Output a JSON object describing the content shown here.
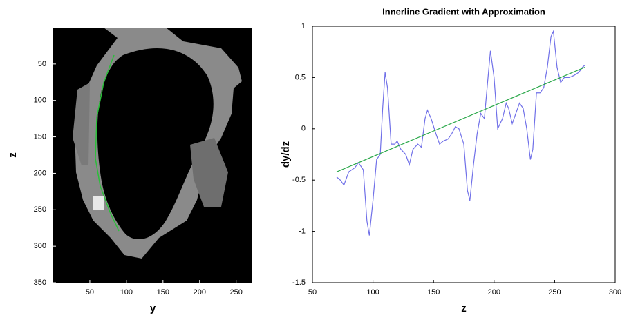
{
  "chart_data": [
    {
      "type": "image",
      "xlabel": "y",
      "ylabel": "z",
      "xlim": [
        0,
        272
      ],
      "ylim": [
        0,
        350
      ],
      "y_inverted": true,
      "xticks": [
        50,
        100,
        150,
        200,
        250
      ],
      "yticks": [
        50,
        100,
        150,
        200,
        250,
        300,
        350
      ]
    },
    {
      "type": "line",
      "title": "Innerline Gradient with Approximation",
      "xlabel": "z",
      "ylabel": "dy/dz",
      "xlim": [
        50,
        300
      ],
      "ylim": [
        -1.5,
        1
      ],
      "xticks": [
        50,
        100,
        150,
        200,
        250,
        300
      ],
      "yticks": [
        -1.5,
        -1,
        -0.5,
        0,
        0.5,
        1
      ],
      "series": [
        {
          "color": "#7070e8",
          "x": [
            70,
            73,
            76,
            80,
            85,
            88,
            92,
            95,
            97,
            100,
            103,
            106,
            108,
            110,
            112,
            115,
            118,
            120,
            123,
            127,
            130,
            133,
            137,
            140,
            143,
            145,
            148,
            152,
            155,
            158,
            162,
            165,
            168,
            171,
            175,
            178,
            180,
            183,
            186,
            189,
            192,
            195,
            197,
            200,
            203,
            207,
            210,
            212,
            215,
            218,
            221,
            224,
            227,
            230,
            232,
            235,
            238,
            241,
            244,
            247,
            249,
            252,
            255,
            258,
            262,
            266,
            270,
            273,
            275
          ],
          "values": [
            -0.47,
            -0.5,
            -0.55,
            -0.42,
            -0.38,
            -0.33,
            -0.4,
            -0.9,
            -1.04,
            -0.7,
            -0.3,
            -0.25,
            0.2,
            0.55,
            0.4,
            -0.15,
            -0.15,
            -0.12,
            -0.2,
            -0.25,
            -0.35,
            -0.2,
            -0.15,
            -0.18,
            0.1,
            0.18,
            0.1,
            -0.05,
            -0.15,
            -0.12,
            -0.1,
            -0.05,
            0.02,
            0,
            -0.15,
            -0.6,
            -0.7,
            -0.35,
            -0.05,
            0.15,
            0.1,
            0.5,
            0.76,
            0.5,
            0,
            0.1,
            0.25,
            0.2,
            0.05,
            0.15,
            0.25,
            0.2,
            0,
            -0.3,
            -0.2,
            0.35,
            0.35,
            0.4,
            0.6,
            0.9,
            0.95,
            0.6,
            0.45,
            0.5,
            0.5,
            0.52,
            0.55,
            0.6,
            0.62
          ]
        },
        {
          "color": "#2aa84a",
          "x": [
            70,
            275
          ],
          "values": [
            -0.42,
            0.6
          ]
        }
      ]
    }
  ]
}
